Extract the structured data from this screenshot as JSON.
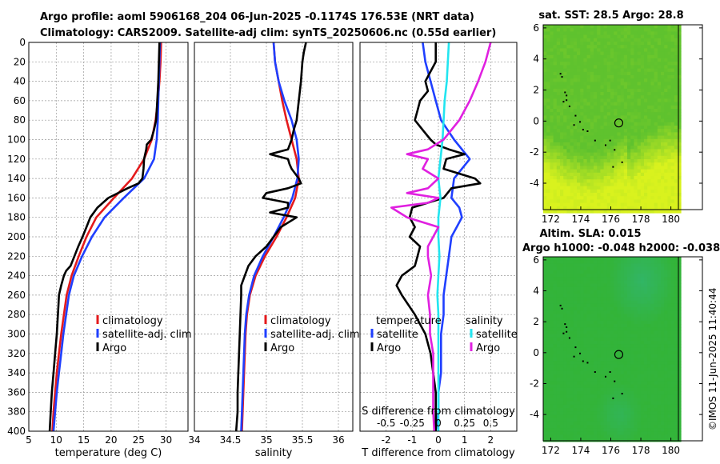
{
  "header": {
    "title_line1": "Argo profile: aoml 5906168_204 06-Jun-2025 -0.1174S 176.53E (NRT data)",
    "title_line2": "Climatology: CARS2009. Satellite-adj clim: synTS_20250606.nc (0.55d earlier)"
  },
  "footer": {
    "stamp": "©IMOS 11-Jun-2025 11:40:44"
  },
  "colors": {
    "climatology": "#e41a1c",
    "satellite": "#1f3fff",
    "argo": "#000000",
    "salinity_sat": "#22e5f0",
    "salinity_argo": "#e020e0"
  },
  "chart_data": [
    {
      "id": "temperature",
      "type": "line",
      "xlabel": "temperature (deg C)",
      "xlim": [
        5,
        34
      ],
      "xticks": [
        5,
        10,
        15,
        20,
        25,
        30
      ],
      "ylim": [
        0,
        400
      ],
      "yticks": [
        0,
        20,
        40,
        60,
        80,
        100,
        120,
        140,
        160,
        180,
        200,
        220,
        240,
        260,
        280,
        300,
        320,
        340,
        360,
        380,
        400
      ],
      "legend": {
        "position": "lower-right",
        "entries": [
          "climatology",
          "satellite-adj. clim",
          "Argo"
        ]
      },
      "series": [
        {
          "name": "climatology",
          "color": "#e41a1c",
          "depth": [
            0,
            20,
            40,
            60,
            80,
            100,
            120,
            140,
            160,
            180,
            200,
            220,
            240,
            260,
            280,
            300,
            320,
            340,
            360,
            380,
            400
          ],
          "values": [
            29.1,
            29.0,
            28.8,
            28.5,
            28.1,
            27.4,
            26.0,
            23.8,
            20.5,
            17.3,
            15.5,
            14.1,
            12.8,
            11.9,
            11.4,
            10.9,
            10.5,
            10.1,
            9.8,
            9.5,
            9.3
          ]
        },
        {
          "name": "satellite-adj. clim",
          "color": "#1f3fff",
          "depth": [
            0,
            20,
            40,
            60,
            80,
            100,
            120,
            140,
            160,
            180,
            200,
            220,
            240,
            260,
            280,
            300,
            320,
            340,
            360,
            380,
            400
          ],
          "values": [
            28.9,
            28.8,
            28.7,
            28.6,
            28.5,
            28.3,
            27.8,
            26.0,
            22.3,
            18.8,
            16.5,
            14.7,
            13.2,
            12.3,
            11.8,
            11.3,
            10.9,
            10.5,
            10.1,
            9.8,
            9.5
          ]
        },
        {
          "name": "Argo",
          "color": "#000000",
          "depth": [
            0,
            20,
            40,
            60,
            80,
            90,
            100,
            105,
            110,
            120,
            130,
            140,
            145,
            150,
            160,
            170,
            180,
            190,
            200,
            210,
            220,
            230,
            235,
            240,
            250,
            260,
            270,
            280,
            300,
            320,
            340,
            360,
            380,
            400
          ],
          "values": [
            28.8,
            28.7,
            28.6,
            28.4,
            28.2,
            27.8,
            27.3,
            26.5,
            26.4,
            26.0,
            25.9,
            25.7,
            25.0,
            23.0,
            19.5,
            17.5,
            16.2,
            15.5,
            14.8,
            14.0,
            13.3,
            12.6,
            11.8,
            11.4,
            10.9,
            10.5,
            10.4,
            10.3,
            10.1,
            9.8,
            9.5,
            9.2,
            9.0,
            8.8
          ]
        }
      ]
    },
    {
      "id": "salinity",
      "type": "line",
      "xlabel": "salinity",
      "xlim": [
        34,
        36.2
      ],
      "xticks": [
        34,
        34.5,
        35,
        35.5,
        36
      ],
      "ylim": [
        0,
        400
      ],
      "legend": {
        "position": "lower-right",
        "entries": [
          "climatology",
          "satellite-adj. clim",
          "Argo"
        ]
      },
      "series": [
        {
          "name": "climatology",
          "color": "#e41a1c",
          "depth": [
            0,
            20,
            40,
            60,
            80,
            100,
            120,
            140,
            160,
            180,
            200,
            220,
            240,
            260,
            280,
            300,
            320,
            340,
            360,
            380,
            400
          ],
          "values": [
            35.1,
            35.12,
            35.17,
            35.22,
            35.28,
            35.35,
            35.42,
            35.45,
            35.4,
            35.28,
            35.14,
            34.98,
            34.85,
            34.77,
            34.73,
            34.71,
            34.7,
            34.69,
            34.68,
            34.67,
            34.66
          ]
        },
        {
          "name": "satellite-adj. clim",
          "color": "#1f3fff",
          "depth": [
            0,
            20,
            40,
            60,
            80,
            100,
            120,
            140,
            160,
            180,
            200,
            220,
            240,
            260,
            280,
            300,
            320,
            340,
            360,
            380,
            400
          ],
          "values": [
            35.1,
            35.12,
            35.17,
            35.25,
            35.35,
            35.42,
            35.45,
            35.43,
            35.36,
            35.24,
            35.1,
            34.95,
            34.83,
            34.76,
            34.72,
            34.7,
            34.69,
            34.68,
            34.67,
            34.66,
            34.65
          ]
        },
        {
          "name": "Argo",
          "color": "#000000",
          "depth": [
            0,
            10,
            20,
            40,
            60,
            80,
            90,
            100,
            110,
            115,
            120,
            125,
            130,
            140,
            145,
            150,
            155,
            160,
            165,
            170,
            175,
            180,
            190,
            200,
            210,
            220,
            230,
            240,
            250,
            260,
            280,
            300,
            320,
            340,
            360,
            380,
            400
          ],
          "values": [
            35.55,
            35.52,
            35.5,
            35.48,
            35.45,
            35.42,
            35.38,
            35.35,
            35.3,
            35.05,
            35.3,
            35.32,
            35.35,
            35.45,
            35.48,
            35.3,
            35.0,
            34.95,
            35.3,
            35.3,
            35.05,
            35.42,
            35.2,
            35.1,
            35.0,
            34.85,
            34.75,
            34.7,
            34.65,
            34.65,
            34.64,
            34.63,
            34.62,
            34.61,
            34.6,
            34.6,
            34.58
          ]
        }
      ]
    },
    {
      "id": "differences",
      "type": "line",
      "xlabel": "T difference from climatology",
      "xlim": [
        -3,
        3
      ],
      "xticks": [
        -2,
        -1,
        0,
        1,
        2
      ],
      "top_axis_label": "S difference from climatology",
      "top_axis_xlim": [
        -0.75,
        0.75
      ],
      "top_axis_ticks": [
        -0.5,
        -0.25,
        0,
        0.25,
        0.5
      ],
      "ylim": [
        0,
        400
      ],
      "legend": {
        "position": "lower-right",
        "temperature_heading": "temperature",
        "salinity_heading": "salinity",
        "entries": [
          "satellite",
          "Argo",
          "satellite",
          "Argo"
        ]
      },
      "series": [
        {
          "name": "T satellite",
          "color": "#1f3fff",
          "axis": "T",
          "depth": [
            0,
            20,
            40,
            60,
            80,
            100,
            110,
            120,
            140,
            160,
            170,
            180,
            190,
            200,
            220,
            240,
            260,
            280,
            300,
            320,
            340,
            360,
            380,
            400
          ],
          "values": [
            -0.6,
            -0.5,
            -0.3,
            -0.1,
            0.1,
            0.6,
            0.9,
            1.2,
            0.6,
            0.5,
            0.8,
            0.9,
            0.7,
            0.5,
            0.4,
            0.3,
            0.2,
            0.2,
            0.1,
            0.1,
            0.1,
            0.0,
            0.0,
            -0.1
          ]
        },
        {
          "name": "T Argo",
          "color": "#000000",
          "axis": "T",
          "depth": [
            0,
            20,
            30,
            40,
            50,
            60,
            70,
            80,
            90,
            100,
            105,
            110,
            115,
            120,
            130,
            140,
            145,
            150,
            160,
            170,
            180,
            190,
            200,
            210,
            220,
            230,
            240,
            250,
            260,
            280,
            300,
            320,
            340,
            360,
            380,
            400
          ],
          "values": [
            -0.1,
            -0.1,
            -0.3,
            -0.5,
            -0.4,
            -0.7,
            -0.8,
            -0.9,
            -0.6,
            -0.3,
            -0.1,
            0.4,
            1.0,
            0.3,
            0.2,
            1.4,
            1.6,
            0.5,
            0.2,
            -1.0,
            -1.1,
            -0.9,
            -1.1,
            -0.7,
            -0.8,
            -0.9,
            -1.4,
            -1.6,
            -1.4,
            -0.9,
            -0.5,
            -0.3,
            -0.2,
            -0.1,
            -0.1,
            -0.1
          ]
        },
        {
          "name": "S satellite",
          "color": "#22e5f0",
          "axis": "S",
          "depth": [
            0,
            20,
            40,
            60,
            80,
            100,
            120,
            140,
            160,
            180,
            200,
            220,
            240,
            260,
            280,
            300,
            320,
            340,
            360,
            380,
            400
          ],
          "values": [
            0.1,
            0.09,
            0.08,
            0.06,
            0.05,
            0.04,
            0.02,
            0.0,
            0.02,
            0.0,
            0.0,
            0.01,
            0.0,
            -0.01,
            0.0,
            0.0,
            0.0,
            0.0,
            0.0,
            0.0,
            0.0
          ]
        },
        {
          "name": "S Argo",
          "color": "#e020e0",
          "axis": "S",
          "depth": [
            0,
            20,
            40,
            60,
            80,
            100,
            110,
            115,
            120,
            130,
            140,
            150,
            155,
            160,
            165,
            170,
            180,
            190,
            200,
            210,
            220,
            240,
            260,
            280,
            300,
            320,
            340,
            360,
            380,
            400
          ],
          "values": [
            0.5,
            0.45,
            0.38,
            0.3,
            0.2,
            0.05,
            -0.1,
            -0.3,
            -0.1,
            -0.15,
            0.0,
            -0.1,
            -0.3,
            0.0,
            -0.1,
            -0.45,
            -0.3,
            0.0,
            -0.05,
            -0.1,
            -0.1,
            -0.07,
            -0.1,
            -0.08,
            -0.08,
            -0.05,
            -0.05,
            -0.05,
            -0.05,
            -0.04
          ]
        }
      ]
    },
    {
      "id": "sst_map",
      "type": "heatmap",
      "title": "sat. SST: 28.5 Argo: 28.8",
      "xlim": [
        171.5,
        180.5
      ],
      "xticks": [
        172,
        174,
        176,
        178,
        180
      ],
      "ylim": [
        -5.7,
        6.2
      ],
      "yticks": [
        -4,
        -2,
        0,
        2,
        4,
        6
      ],
      "marker": {
        "lon": 176.53,
        "lat": -0.12
      },
      "palette": {
        "green": "#5fc22e",
        "yellow": "#d9f21e"
      }
    },
    {
      "id": "sla_map",
      "type": "heatmap",
      "title": "Altim. SLA: 0.015",
      "subtitle": "Argo h1000: -0.048 h2000: -0.038",
      "xlim": [
        171.5,
        180.5
      ],
      "xticks": [
        172,
        174,
        176,
        178,
        180
      ],
      "ylim": [
        -5.7,
        6.2
      ],
      "yticks": [
        -4,
        -2,
        0,
        2,
        4,
        6
      ],
      "marker": {
        "lon": 176.53,
        "lat": -0.12
      },
      "palette": {
        "base": "#33b43a",
        "teal": "#30b78a"
      }
    }
  ]
}
